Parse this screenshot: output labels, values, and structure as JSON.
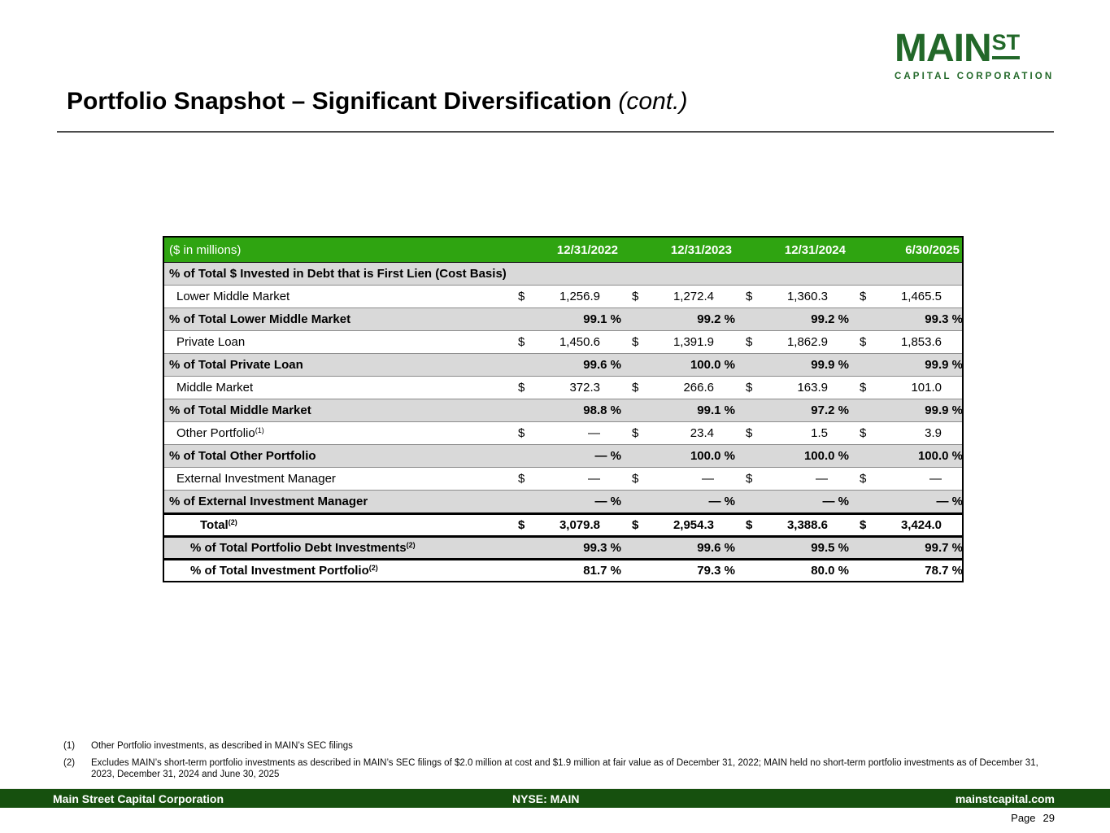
{
  "logo": {
    "word": "MAIN",
    "st": "ST",
    "tagline": "CAPITAL CORPORATION",
    "color": "#226829"
  },
  "title": {
    "text": "Portfolio Snapshot – Significant Diversification",
    "suffix": "(cont.)"
  },
  "table": {
    "unit_label": "($ in millions)",
    "header_bg": "#2FA411",
    "shaded_row_bg": "#D9D9D9",
    "columns": [
      "12/31/2022",
      "12/31/2023",
      "12/31/2024",
      "6/30/2025"
    ],
    "section_header": "% of Total $ Invested in Debt that is First Lien (Cost Basis)",
    "dash": "—",
    "rows": [
      {
        "label": "Lower Middle Market",
        "sup": "",
        "kind": "dollar",
        "shaded": false,
        "bold": false,
        "indent": 1,
        "thick_top": false,
        "values": [
          "1,256.9",
          "1,272.4",
          "1,360.3",
          "1,465.5"
        ]
      },
      {
        "label": "% of Total Lower Middle Market",
        "sup": "",
        "kind": "percent",
        "shaded": true,
        "bold": true,
        "indent": 0,
        "thick_top": false,
        "values": [
          "99.1",
          "99.2",
          "99.2",
          "99.3"
        ]
      },
      {
        "label": "Private Loan",
        "sup": "",
        "kind": "dollar",
        "shaded": false,
        "bold": false,
        "indent": 1,
        "thick_top": false,
        "values": [
          "1,450.6",
          "1,391.9",
          "1,862.9",
          "1,853.6"
        ]
      },
      {
        "label": "% of Total Private Loan",
        "sup": "",
        "kind": "percent",
        "shaded": true,
        "bold": true,
        "indent": 0,
        "thick_top": false,
        "values": [
          "99.6",
          "100.0",
          "99.9",
          "99.9"
        ]
      },
      {
        "label": "Middle Market",
        "sup": "",
        "kind": "dollar",
        "shaded": false,
        "bold": false,
        "indent": 1,
        "thick_top": false,
        "values": [
          "372.3",
          "266.6",
          "163.9",
          "101.0"
        ]
      },
      {
        "label": "% of Total Middle Market",
        "sup": "",
        "kind": "percent",
        "shaded": true,
        "bold": true,
        "indent": 0,
        "thick_top": false,
        "values": [
          "98.8",
          "99.1",
          "97.2",
          "99.9"
        ]
      },
      {
        "label": "Other Portfolio",
        "sup": "(1)",
        "kind": "dollar",
        "shaded": false,
        "bold": false,
        "indent": 1,
        "thick_top": false,
        "values": [
          "—",
          "23.4",
          "1.5",
          "3.9"
        ]
      },
      {
        "label": "% of Total Other Portfolio",
        "sup": "",
        "kind": "percent",
        "shaded": true,
        "bold": true,
        "indent": 0,
        "thick_top": false,
        "values": [
          "—",
          "100.0",
          "100.0",
          "100.0"
        ]
      },
      {
        "label": "External Investment Manager",
        "sup": "",
        "kind": "dollar",
        "shaded": false,
        "bold": false,
        "indent": 1,
        "thick_top": false,
        "values": [
          "—",
          "—",
          "—",
          "—"
        ]
      },
      {
        "label": "% of External Investment Manager",
        "sup": "",
        "kind": "percent",
        "shaded": true,
        "bold": true,
        "indent": 0,
        "thick_top": false,
        "values": [
          "—",
          "—",
          "—",
          "—"
        ]
      },
      {
        "label": "Total",
        "sup": "(2)",
        "kind": "dollar",
        "shaded": false,
        "bold": true,
        "indent": 3,
        "thick_top": true,
        "values": [
          "3,079.8",
          "2,954.3",
          "3,388.6",
          "3,424.0"
        ]
      },
      {
        "label": "% of Total Portfolio Debt Investments",
        "sup": "(2)",
        "kind": "percent",
        "shaded": true,
        "bold": true,
        "indent": 2,
        "thick_top": true,
        "values": [
          "99.3",
          "99.6",
          "99.5",
          "99.7"
        ]
      },
      {
        "label": "% of Total Investment Portfolio",
        "sup": "(2)",
        "kind": "percent",
        "shaded": false,
        "bold": true,
        "indent": 2,
        "thick_top": true,
        "values": [
          "81.7",
          "79.3",
          "80.0",
          "78.7"
        ]
      }
    ]
  },
  "footnotes": [
    {
      "marker": "(1)",
      "text": "Other Portfolio investments, as described in MAIN’s SEC filings"
    },
    {
      "marker": "(2)",
      "text": "Excludes MAIN’s short-term portfolio investments as described in MAIN’s SEC filings of $2.0 million at cost and $1.9 million at fair value as of December 31, 2022; MAIN held no short-term portfolio investments as of December 31, 2023, December 31, 2024 and June 30, 2025"
    }
  ],
  "footer": {
    "bg": "#16500E",
    "company": "Main Street Capital Corporation",
    "ticker": "NYSE: MAIN",
    "website": "mainstcapital.com",
    "page_label": "Page",
    "page_number": "29"
  }
}
